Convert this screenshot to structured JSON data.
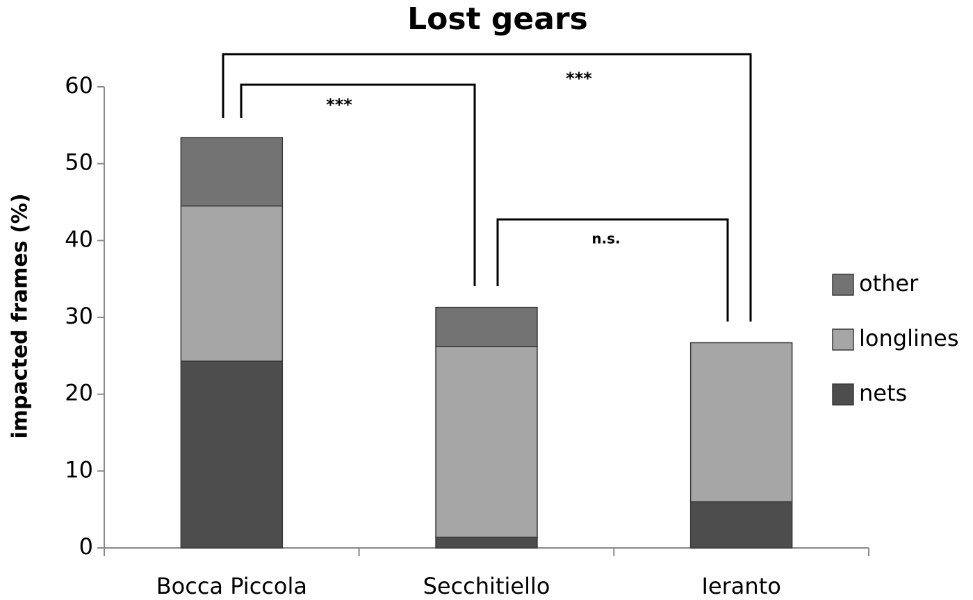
{
  "chart_data": {
    "type": "stacked-bar",
    "title": "Lost gears",
    "y_label": "impacted frames (%)",
    "categories": [
      "Bocca Piccola",
      "Secchitiello",
      "Ieranto"
    ],
    "series": [
      {
        "name": "nets",
        "color": "#4d4d4d",
        "values": [
          24.3,
          1.4,
          6.0
        ]
      },
      {
        "name": "longlines",
        "color": "#a6a6a6",
        "values": [
          20.2,
          24.8,
          20.7
        ]
      },
      {
        "name": "other",
        "color": "#737373",
        "values": [
          8.9,
          5.1,
          0
        ]
      }
    ],
    "ylim": [
      0,
      60
    ],
    "yticks": [
      0,
      10,
      20,
      30,
      40,
      50,
      60
    ],
    "annotations": [
      {
        "text": "***"
      },
      {
        "text": "***"
      },
      {
        "text": "n.s."
      }
    ]
  }
}
